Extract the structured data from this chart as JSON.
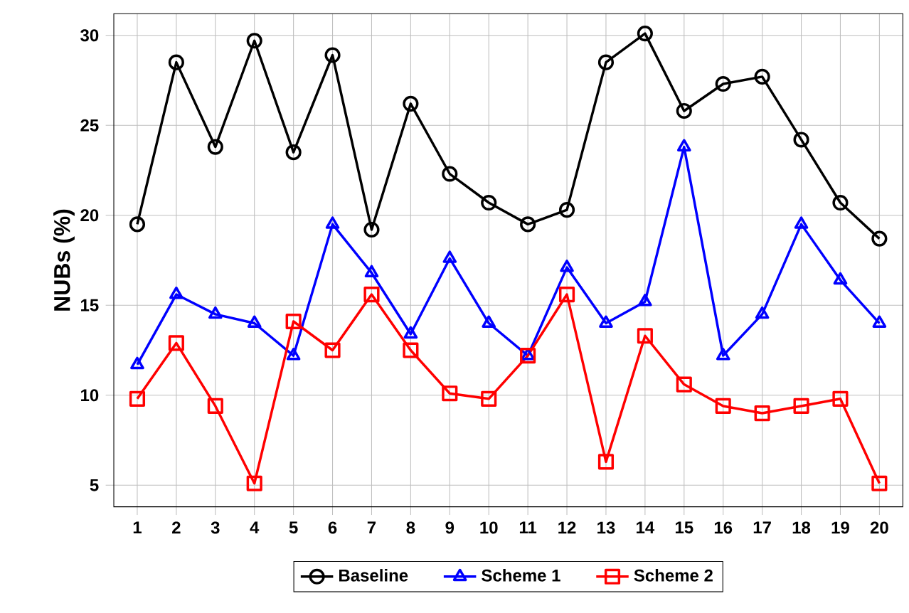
{
  "chart_data": {
    "type": "line",
    "ylabel": "NUBs (%)",
    "categories": [
      "1",
      "2",
      "3",
      "4",
      "5",
      "6",
      "7",
      "8",
      "9",
      "10",
      "11",
      "12",
      "13",
      "14",
      "15",
      "16",
      "17",
      "18",
      "19",
      "20"
    ],
    "series": [
      {
        "name": "Baseline",
        "color": "#000000",
        "marker": "circle",
        "values": [
          19.5,
          28.5,
          23.8,
          29.7,
          23.5,
          28.9,
          19.2,
          26.2,
          22.3,
          20.7,
          19.5,
          20.3,
          28.5,
          30.1,
          25.8,
          27.3,
          27.7,
          24.2,
          20.7,
          18.7
        ]
      },
      {
        "name": "Scheme 1",
        "color": "#0000ff",
        "marker": "triangle",
        "values": [
          11.7,
          15.6,
          14.5,
          14.0,
          12.2,
          19.5,
          16.8,
          13.4,
          17.6,
          14.0,
          12.2,
          17.1,
          14.0,
          15.2,
          23.8,
          12.2,
          14.5,
          19.5,
          16.4,
          14.0
        ]
      },
      {
        "name": "Scheme 2",
        "color": "#ff0000",
        "marker": "square",
        "values": [
          9.8,
          12.9,
          9.4,
          5.1,
          14.1,
          12.5,
          15.6,
          12.5,
          10.1,
          9.8,
          12.2,
          15.6,
          6.3,
          13.3,
          10.6,
          9.4,
          9.0,
          9.4,
          9.8,
          5.1
        ]
      }
    ],
    "ylim": [
      3.8,
      31.2
    ],
    "yticks": [
      5,
      10,
      15,
      20,
      25,
      30
    ],
    "grid": true,
    "legend": "bottom",
    "line_style": "solid"
  }
}
